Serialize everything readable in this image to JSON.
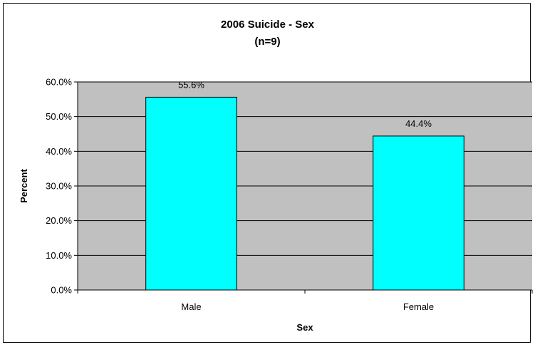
{
  "chart_data": {
    "type": "bar",
    "title": "2006 Suicide - Sex",
    "subtitle": "(n=9)",
    "xlabel": "Sex",
    "ylabel": "Percent",
    "categories": [
      "Male",
      "Female"
    ],
    "values": [
      55.6,
      44.4
    ],
    "data_labels": [
      "55.6%",
      "44.4%"
    ],
    "y_ticks": [
      0,
      10,
      20,
      30,
      40,
      50,
      60
    ],
    "y_tick_labels": [
      "0.0%",
      "10.0%",
      "20.0%",
      "30.0%",
      "40.0%",
      "50.0%",
      "60.0%"
    ],
    "ylim": [
      0,
      60
    ],
    "grid": true,
    "legend": "none",
    "colors": {
      "bar_fill": "#00FFFF",
      "bar_stroke": "#000000",
      "plot_background": "#C0C0C0",
      "gridline": "#000000"
    }
  }
}
